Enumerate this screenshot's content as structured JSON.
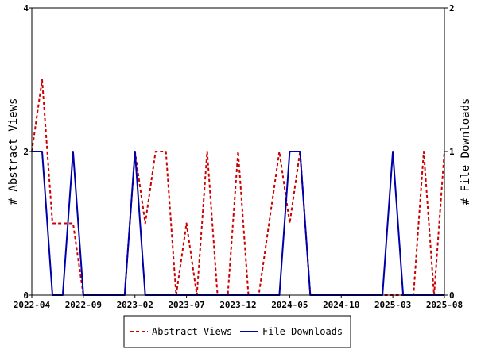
{
  "chart_data": {
    "type": "line",
    "x_ticks": [
      "2022-04",
      "2022-09",
      "2023-02",
      "2023-07",
      "2023-12",
      "2024-05",
      "2024-10",
      "2025-03",
      "2025-08"
    ],
    "x_range": [
      "2022-04",
      "2025-08"
    ],
    "y_left": {
      "label": "# Abstract Views",
      "range": [
        0,
        4
      ],
      "ticks": [
        "0",
        "2",
        "4"
      ]
    },
    "y_right": {
      "label": "# File Downloads",
      "range": [
        0,
        2
      ],
      "ticks": [
        "0",
        "1",
        "2"
      ]
    },
    "legend_position": "bottom-center",
    "series": [
      {
        "name": "Abstract Views",
        "axis": "left",
        "color": "#cc0000",
        "style": "dashed",
        "x": [
          "2022-04",
          "2022-05",
          "2022-06",
          "2022-07",
          "2022-08",
          "2022-09",
          "2022-10",
          "2022-11",
          "2022-12",
          "2023-01",
          "2023-02",
          "2023-03",
          "2023-04",
          "2023-05",
          "2023-06",
          "2023-07",
          "2023-08",
          "2023-09",
          "2023-10",
          "2023-11",
          "2023-12",
          "2024-01",
          "2024-02",
          "2024-03",
          "2024-04",
          "2024-05",
          "2024-06",
          "2024-07",
          "2024-08",
          "2024-09",
          "2024-10",
          "2024-11",
          "2024-12",
          "2025-01",
          "2025-02",
          "2025-03",
          "2025-04",
          "2025-05",
          "2025-06",
          "2025-07",
          "2025-08"
        ],
        "values": [
          2,
          3,
          1,
          1,
          1,
          0,
          0,
          0,
          0,
          0,
          2,
          1,
          2,
          2,
          0,
          1,
          0,
          2,
          0,
          0,
          2,
          0,
          0,
          1,
          2,
          1,
          2,
          0,
          0,
          0,
          0,
          0,
          0,
          0,
          0,
          0,
          0,
          0,
          2,
          0,
          2
        ]
      },
      {
        "name": "File Downloads",
        "axis": "right",
        "color": "#0000aa",
        "style": "solid",
        "x": [
          "2022-04",
          "2022-05",
          "2022-06",
          "2022-07",
          "2022-08",
          "2022-09",
          "2022-10",
          "2022-11",
          "2022-12",
          "2023-01",
          "2023-02",
          "2023-03",
          "2023-04",
          "2023-05",
          "2023-06",
          "2023-07",
          "2023-08",
          "2023-09",
          "2023-10",
          "2023-11",
          "2023-12",
          "2024-01",
          "2024-02",
          "2024-03",
          "2024-04",
          "2024-05",
          "2024-06",
          "2024-07",
          "2024-08",
          "2024-09",
          "2024-10",
          "2024-11",
          "2024-12",
          "2025-01",
          "2025-02",
          "2025-03",
          "2025-04",
          "2025-05",
          "2025-06",
          "2025-07",
          "2025-08"
        ],
        "values": [
          1,
          1,
          0,
          0,
          1,
          0,
          0,
          0,
          0,
          0,
          1,
          0,
          0,
          0,
          0,
          0,
          0,
          0,
          0,
          0,
          0,
          0,
          0,
          0,
          0,
          1,
          1,
          0,
          0,
          0,
          0,
          0,
          0,
          0,
          0,
          1,
          0,
          0,
          0,
          0,
          0
        ]
      }
    ]
  }
}
